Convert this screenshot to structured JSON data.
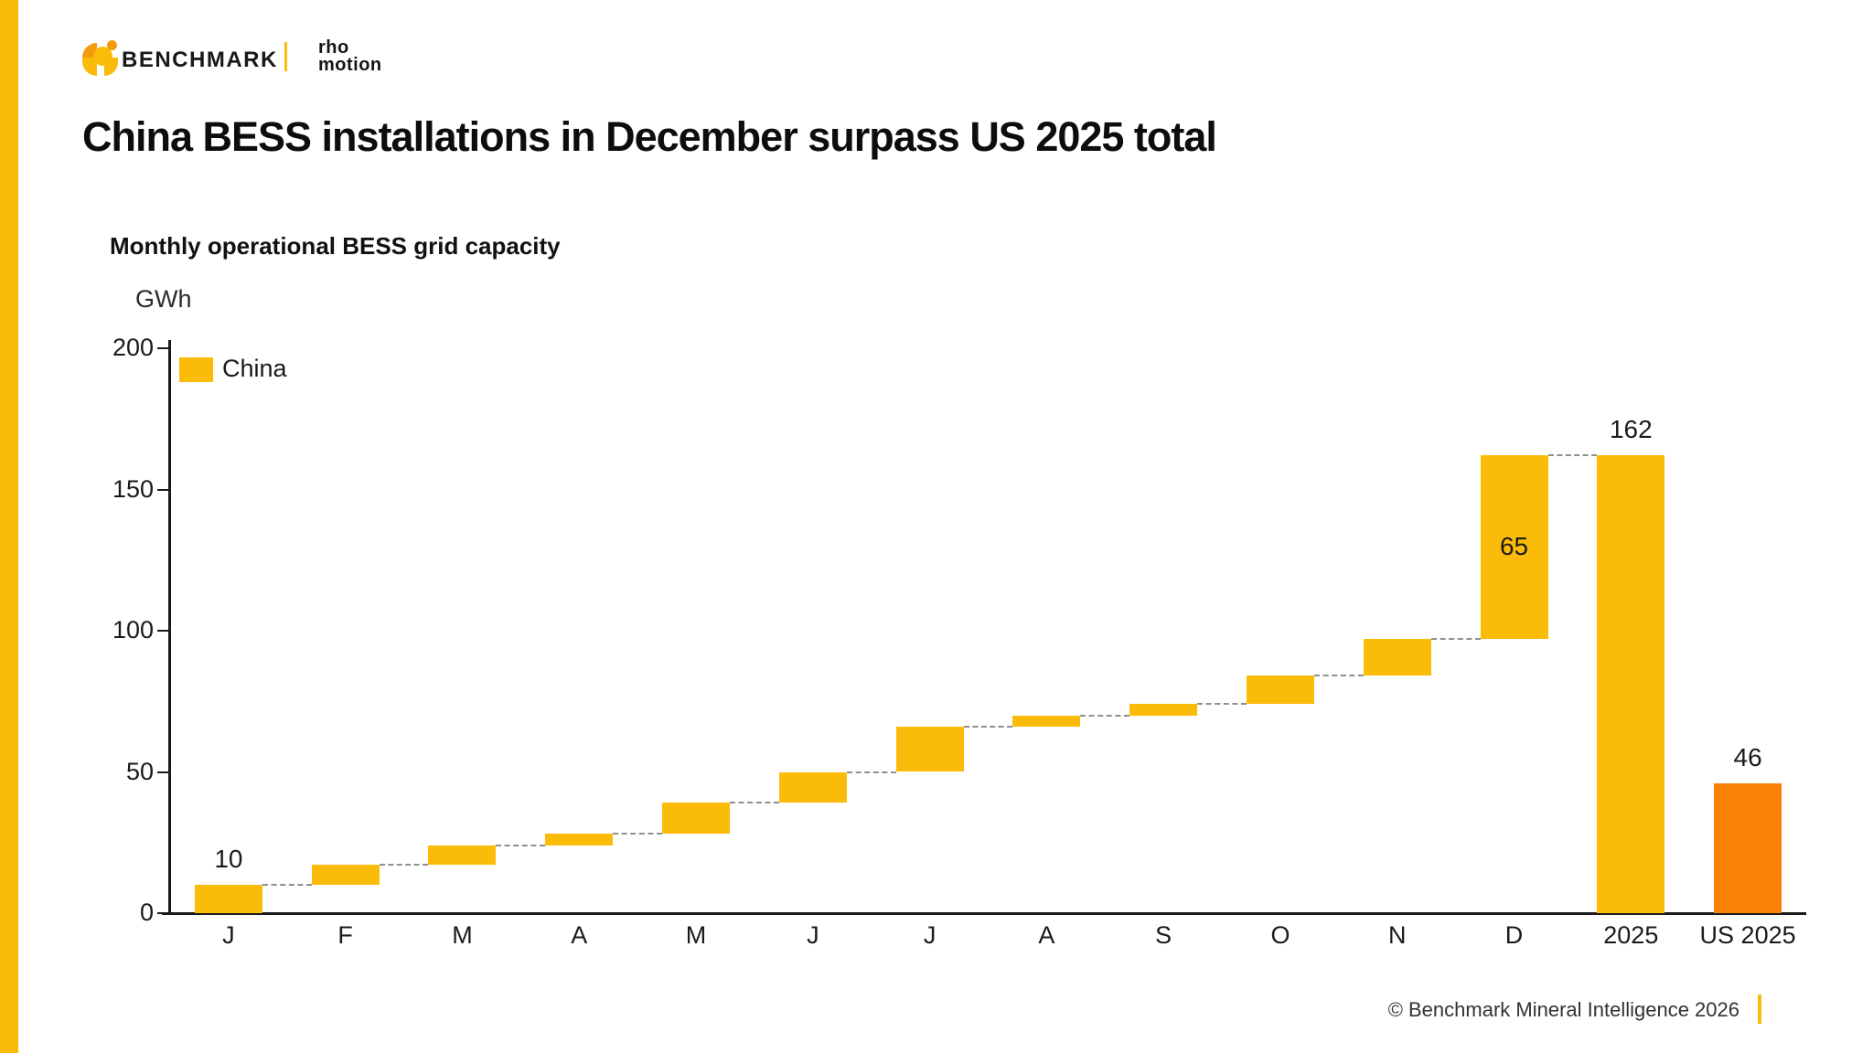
{
  "brand": {
    "name": "BENCHMARK",
    "partner": {
      "line1": "rho",
      "line2": "motion"
    },
    "colors": {
      "yellow": "#FBBC09",
      "amber": "#F29B0C"
    }
  },
  "accent": {
    "stripe_color": "#FBBC09"
  },
  "title": "China BESS installations in December surpass US 2025 total",
  "chart": {
    "subtitle": "Monthly operational BESS grid capacity",
    "unit": "GWh",
    "legend": [
      {
        "label": "China",
        "color": "#FBBC09"
      }
    ]
  },
  "chart_data": {
    "type": "bar",
    "subtype": "waterfall",
    "title": "Monthly operational BESS grid capacity",
    "ylabel": "GWh",
    "ylim": [
      0,
      200
    ],
    "yticks": [
      0,
      50,
      100,
      150,
      200
    ],
    "grid": false,
    "legend_position": "top-left",
    "categories": [
      "J",
      "F",
      "M",
      "A",
      "M",
      "J",
      "J",
      "A",
      "S",
      "O",
      "N",
      "D",
      "2025",
      "US 2025"
    ],
    "monthly_additions": [
      10,
      7,
      7,
      4,
      11,
      11,
      16,
      4,
      4,
      10,
      13,
      65
    ],
    "bars": [
      {
        "category": "J",
        "series": "China",
        "start": 0,
        "end": 10,
        "color": "#FBBC09",
        "label": "10",
        "label_pos": "above"
      },
      {
        "category": "F",
        "series": "China",
        "start": 10,
        "end": 17,
        "color": "#FBBC09"
      },
      {
        "category": "M",
        "series": "China",
        "start": 17,
        "end": 24,
        "color": "#FBBC09"
      },
      {
        "category": "A",
        "series": "China",
        "start": 24,
        "end": 28,
        "color": "#FBBC09"
      },
      {
        "category": "M",
        "series": "China",
        "start": 28,
        "end": 39,
        "color": "#FBBC09"
      },
      {
        "category": "J",
        "series": "China",
        "start": 39,
        "end": 50,
        "color": "#FBBC09"
      },
      {
        "category": "J",
        "series": "China",
        "start": 50,
        "end": 66,
        "color": "#FBBC09"
      },
      {
        "category": "A",
        "series": "China",
        "start": 66,
        "end": 70,
        "color": "#FBBC09"
      },
      {
        "category": "S",
        "series": "China",
        "start": 70,
        "end": 74,
        "color": "#FBBC09"
      },
      {
        "category": "O",
        "series": "China",
        "start": 74,
        "end": 84,
        "color": "#FBBC09"
      },
      {
        "category": "N",
        "series": "China",
        "start": 84,
        "end": 97,
        "color": "#FBBC09"
      },
      {
        "category": "D",
        "series": "China",
        "start": 97,
        "end": 162,
        "color": "#FBBC09",
        "label": "65",
        "label_pos": "middle"
      },
      {
        "category": "2025",
        "series": "China total",
        "start": 0,
        "end": 162,
        "color": "#FBBC09",
        "label": "162",
        "label_pos": "above"
      },
      {
        "category": "US 2025",
        "series": "US total",
        "start": 0,
        "end": 46,
        "color": "#F98106",
        "label": "46",
        "label_pos": "above"
      }
    ],
    "connectors": "dashed step links between consecutive bars from J through 2025; none between 2025 and US 2025",
    "connector_color": "#8f8f8f"
  },
  "footer": {
    "copyright": "© Benchmark Mineral Intelligence 2026",
    "divider_color": "#FBBC09"
  }
}
